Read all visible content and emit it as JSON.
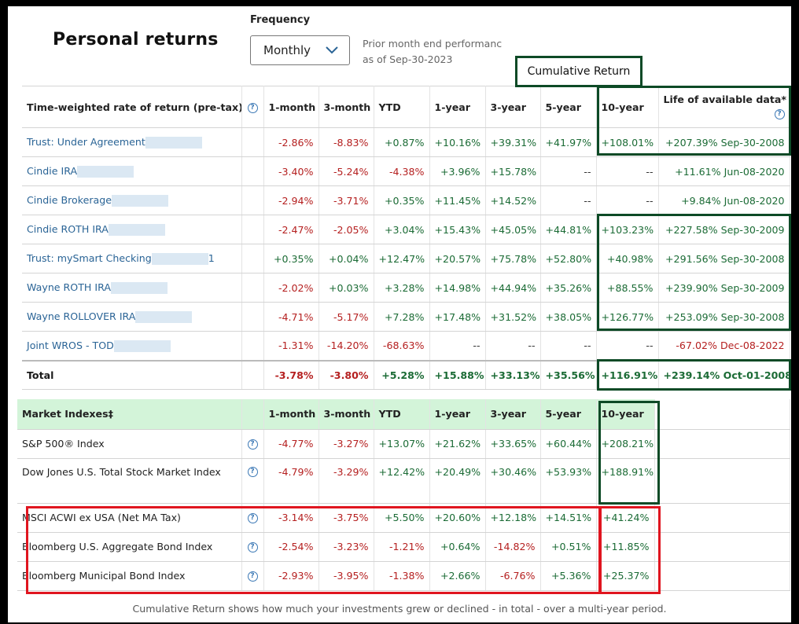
{
  "title": "Personal returns",
  "frequency": {
    "label": "Frequency",
    "value": "Monthly"
  },
  "performance_note": [
    "Prior month end performanc",
    "as of Sep-30-2023"
  ],
  "annotation": "Cumulative Return",
  "accounts": {
    "header": [
      "Time-weighted rate of return (pre-tax)",
      "1-month",
      "3-month",
      "YTD",
      "1-year",
      "3-year",
      "5-year",
      "10-year",
      "Life of available data*"
    ],
    "rows": [
      {
        "name": "Trust: Under Agreement",
        "suffix": "",
        "values": [
          "-2.86%",
          "-8.83%",
          "+0.87%",
          "+10.16%",
          "+39.31%",
          "+41.97%",
          "+108.01%"
        ],
        "life": "+207.39% Sep-30-2008"
      },
      {
        "name": "Cindie IRA",
        "suffix": "",
        "values": [
          "-3.40%",
          "-5.24%",
          "-4.38%",
          "+3.96%",
          "+15.78%",
          "--",
          "--"
        ],
        "life": "+11.61% Jun-08-2020"
      },
      {
        "name": "Cindie Brokerage",
        "suffix": "",
        "values": [
          "-2.94%",
          "-3.71%",
          "+0.35%",
          "+11.45%",
          "+14.52%",
          "--",
          "--"
        ],
        "life": "+9.84% Jun-08-2020"
      },
      {
        "name": "Cindie ROTH IRA",
        "suffix": "",
        "values": [
          "-2.47%",
          "-2.05%",
          "+3.04%",
          "+15.43%",
          "+45.05%",
          "+44.81%",
          "+103.23%"
        ],
        "life": "+227.58% Sep-30-2009"
      },
      {
        "name": "Trust: mySmart Checking",
        "suffix": "1",
        "values": [
          "+0.35%",
          "+0.04%",
          "+12.47%",
          "+20.57%",
          "+75.78%",
          "+52.80%",
          "+40.98%"
        ],
        "life": "+291.56% Sep-30-2008"
      },
      {
        "name": "Wayne ROTH IRA",
        "suffix": "",
        "values": [
          "-2.02%",
          "+0.03%",
          "+3.28%",
          "+14.98%",
          "+44.94%",
          "+35.26%",
          "+88.55%"
        ],
        "life": "+239.90% Sep-30-2009"
      },
      {
        "name": "Wayne ROLLOVER IRA",
        "suffix": "",
        "values": [
          "-4.71%",
          "-5.17%",
          "+7.28%",
          "+17.48%",
          "+31.52%",
          "+38.05%",
          "+126.77%"
        ],
        "life": "+253.09% Sep-30-2008"
      },
      {
        "name": "Joint WROS - TOD",
        "suffix": "",
        "values": [
          "-1.31%",
          "-14.20%",
          "-68.63%",
          "--",
          "--",
          "--",
          "--"
        ],
        "life": "-67.02% Dec-08-2022"
      }
    ],
    "total": {
      "name": "Total",
      "values": [
        "-3.78%",
        "-3.80%",
        "+5.28%",
        "+15.88%",
        "+33.13%",
        "+35.56%",
        "+116.91%"
      ],
      "life": "+239.14% Oct-01-2008"
    }
  },
  "indexes": {
    "header": [
      "Market Indexes‡",
      "1-month",
      "3-month",
      "YTD",
      "1-year",
      "3-year",
      "5-year",
      "10-year"
    ],
    "rows": [
      {
        "name": "S&P 500® Index",
        "values": [
          "-4.77%",
          "-3.27%",
          "+13.07%",
          "+21.62%",
          "+33.65%",
          "+60.44%",
          "+208.21%"
        ]
      },
      {
        "name": "Dow Jones U.S. Total Stock Market Index",
        "values": [
          "-4.79%",
          "-3.29%",
          "+12.42%",
          "+20.49%",
          "+30.46%",
          "+53.93%",
          "+188.91%"
        ]
      },
      {
        "name": "MSCI ACWI ex USA (Net MA Tax)",
        "values": [
          "-3.14%",
          "-3.75%",
          "+5.50%",
          "+20.60%",
          "+12.18%",
          "+14.51%",
          "+41.24%"
        ]
      },
      {
        "name": "Bloomberg U.S. Aggregate Bond Index",
        "values": [
          "-2.54%",
          "-3.23%",
          "-1.21%",
          "+0.64%",
          "-14.82%",
          "+0.51%",
          "+11.85%"
        ]
      },
      {
        "name": "Bloomberg Municipal Bond Index",
        "values": [
          "-2.93%",
          "-3.95%",
          "-1.38%",
          "+2.66%",
          "-6.76%",
          "+5.36%",
          "+25.37%"
        ]
      }
    ]
  },
  "footer": "Cumulative Return shows how much your investments grew or declined - in total - over a multi-year period.",
  "colors": {
    "negative": "#b52020",
    "positive": "#1b6b35",
    "link": "#2a6496",
    "highlight_green": "#0d4a26",
    "highlight_red": "#e0151f",
    "header_bg": "#d3f4d9"
  },
  "icons": {
    "help": "question-circle-icon",
    "dropdown": "chevron-down-icon"
  }
}
